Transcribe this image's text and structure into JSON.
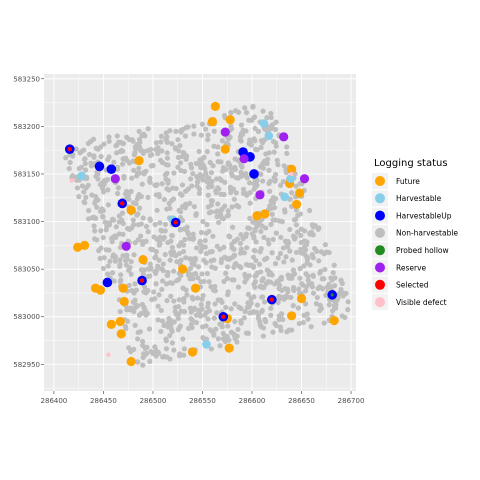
{
  "chart_data": {
    "type": "scatter",
    "title": "",
    "xlabel": "",
    "ylabel": "",
    "xlim": [
      286390,
      286705
    ],
    "ylim": [
      582922,
      583255
    ],
    "x_ticks": [
      286400,
      286450,
      286500,
      286550,
      286600,
      286650,
      286700
    ],
    "y_ticks": [
      583250,
      583200,
      583150,
      583100,
      583050,
      583000,
      582950
    ],
    "grid": true,
    "legend": {
      "title": "Logging status",
      "position": "right",
      "entries": [
        {
          "label": "Future",
          "color": "#FFA500"
        },
        {
          "label": "Harvestable",
          "color": "#87CEEB"
        },
        {
          "label": "HarvestableUp",
          "color": "#0000FF"
        },
        {
          "label": "Non-harvestable",
          "color": "#BEBEBE"
        },
        {
          "label": "Probed hollow",
          "color": "#228B22"
        },
        {
          "label": "Reserve",
          "color": "#A020F0"
        },
        {
          "label": "Selected",
          "color": "#FF0000"
        },
        {
          "label": "Visible defect",
          "color": "#FFC0CB"
        }
      ]
    },
    "plot_boundary": [
      [
        286407,
        583180
      ],
      [
        286617,
        583225
      ],
      [
        286705,
        583000
      ],
      [
        286482,
        582947
      ]
    ],
    "non_harvestable_count": 1300,
    "series": [
      {
        "name": "Future",
        "color": "#FFA500",
        "points": [
          [
            286563,
            583221
          ],
          [
            286578,
            583207
          ],
          [
            286560,
            583205
          ],
          [
            286486,
            583164
          ],
          [
            286573,
            583176
          ],
          [
            286640,
            583155
          ],
          [
            286638,
            583140
          ],
          [
            286648,
            583130
          ],
          [
            286645,
            583118
          ],
          [
            286478,
            583112
          ],
          [
            286605,
            583106
          ],
          [
            286613,
            583108
          ],
          [
            286424,
            583073
          ],
          [
            286431,
            583075
          ],
          [
            286490,
            583060
          ],
          [
            286530,
            583050
          ],
          [
            286543,
            583030
          ],
          [
            286442,
            583030
          ],
          [
            286447,
            583028
          ],
          [
            286470,
            583030
          ],
          [
            286471,
            583016
          ],
          [
            286650,
            583019
          ],
          [
            286640,
            583001
          ],
          [
            286683,
            582996
          ],
          [
            286575,
            582998
          ],
          [
            286467,
            582995
          ],
          [
            286458,
            582992
          ],
          [
            286468,
            582982
          ],
          [
            286478,
            582953
          ],
          [
            286577,
            582967
          ],
          [
            286540,
            582963
          ]
        ]
      },
      {
        "name": "Harvestable",
        "color": "#87CEEB",
        "points": [
          [
            286612,
            583203
          ],
          [
            286617,
            583190
          ],
          [
            286428,
            583148
          ],
          [
            286520,
            583102
          ],
          [
            286633,
            583126
          ],
          [
            286554,
            582971
          ],
          [
            286639,
            583145
          ]
        ]
      },
      {
        "name": "HarvestableUp",
        "color": "#0000FF",
        "points": [
          [
            286416,
            583176
          ],
          [
            286591,
            583173
          ],
          [
            286598,
            583168
          ],
          [
            286446,
            583158
          ],
          [
            286458,
            583155
          ],
          [
            286602,
            583150
          ],
          [
            286469,
            583119
          ],
          [
            286523,
            583099
          ],
          [
            286454,
            583036
          ],
          [
            286489,
            583038
          ],
          [
            286620,
            583018
          ],
          [
            286681,
            583023
          ],
          [
            286571,
            583000
          ]
        ]
      },
      {
        "name": "Reserve",
        "color": "#A020F0",
        "points": [
          [
            286573,
            583194
          ],
          [
            286632,
            583189
          ],
          [
            286592,
            583166
          ],
          [
            286462,
            583145
          ],
          [
            286653,
            583145
          ],
          [
            286608,
            583128
          ],
          [
            286473,
            583074
          ]
        ]
      },
      {
        "name": "Selected",
        "color": "#FF0000",
        "points": [
          [
            286416,
            583176
          ],
          [
            286469,
            583119
          ],
          [
            286523,
            583099
          ],
          [
            286620,
            583018
          ],
          [
            286571,
            583000
          ],
          [
            286489,
            583038
          ]
        ]
      },
      {
        "name": "Probed hollow",
        "color": "#228B22",
        "points": [
          [
            286681,
            583023
          ]
        ]
      },
      {
        "name": "Visible defect",
        "color": "#FFC0CB",
        "points": [
          [
            286418,
            583143
          ],
          [
            286455,
            582960
          ],
          [
            286640,
            583150
          ]
        ]
      }
    ]
  }
}
